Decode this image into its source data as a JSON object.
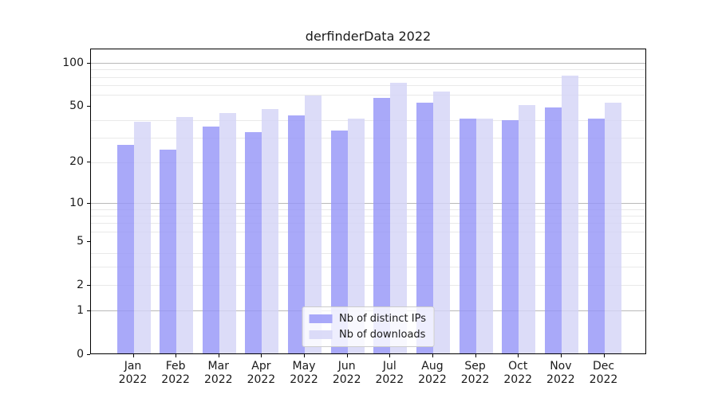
{
  "chart_data": {
    "type": "bar",
    "title": "derfinderData 2022",
    "categories": [
      "Jan 2022",
      "Feb 2022",
      "Mar 2022",
      "Apr 2022",
      "May 2022",
      "Jun 2022",
      "Jul 2022",
      "Aug 2022",
      "Sep 2022",
      "Oct 2022",
      "Nov 2022",
      "Dec 2022"
    ],
    "series": [
      {
        "name": "Nb of distinct IPs",
        "color": "#a9a9f9",
        "fill": "rgba(150,150,248,0.82)",
        "values": [
          26,
          24,
          35,
          32,
          42,
          33,
          56,
          52,
          40,
          39,
          48,
          40
        ]
      },
      {
        "name": "Nb of downloads",
        "color": "#dcdcf9",
        "fill": "rgba(212,212,247,0.82)",
        "values": [
          38,
          41,
          44,
          47,
          58,
          40,
          71,
          62,
          40,
          50,
          80,
          52
        ]
      }
    ],
    "y_scale": "log10(1+y)",
    "ylim": [
      0,
      125
    ],
    "y_ticks_labeled": [
      0,
      1,
      2,
      5,
      10,
      20,
      50,
      100
    ],
    "y_major_gridlines": [
      1,
      10,
      100
    ],
    "y_minor_gridlines": [
      2,
      3,
      4,
      6,
      7,
      8,
      9,
      20,
      30,
      40,
      60,
      70,
      80,
      90
    ],
    "xlabel": "",
    "ylabel": "",
    "grid": true,
    "legend_position": "lower center",
    "colors": {
      "major_grid": "#b9b9b9",
      "minor_grid": "#e9e9e9",
      "spine": "#000000",
      "text": "#1a1a1a",
      "background": "#ffffff"
    }
  }
}
